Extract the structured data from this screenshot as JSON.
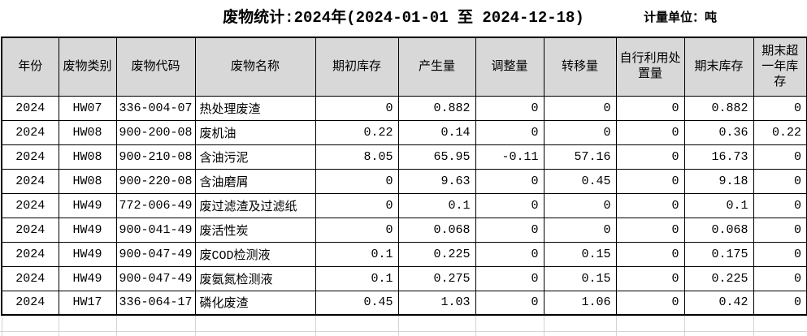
{
  "header": {
    "title": "废物统计:2024年(2024-01-01 至 2024-12-18)",
    "unit_label": "计量单位：吨"
  },
  "table": {
    "headers": [
      "年份",
      "废物类别",
      "废物代码",
      "废物名称",
      "期初库存",
      "产生量",
      "调整量",
      "转移量",
      "自行利用处置量",
      "期末库存",
      "期末超一年库存"
    ],
    "rows": [
      [
        "2024",
        "HW07",
        "336-004-07",
        "热处理废渣",
        "0",
        "0.882",
        "0",
        "0",
        "0",
        "0.882",
        "0"
      ],
      [
        "2024",
        "HW08",
        "900-200-08",
        "废机油",
        "0.22",
        "0.14",
        "0",
        "0",
        "0",
        "0.36",
        "0.22"
      ],
      [
        "2024",
        "HW08",
        "900-210-08",
        "含油污泥",
        "8.05",
        "65.95",
        "-0.11",
        "57.16",
        "0",
        "16.73",
        "0"
      ],
      [
        "2024",
        "HW08",
        "900-220-08",
        "含油磨屑",
        "0",
        "9.63",
        "0",
        "0.45",
        "0",
        "9.18",
        "0"
      ],
      [
        "2024",
        "HW49",
        "772-006-49",
        "废过滤渣及过滤纸",
        "0",
        "0.1",
        "0",
        "0",
        "0",
        "0.1",
        "0"
      ],
      [
        "2024",
        "HW49",
        "900-041-49",
        "废活性炭",
        "0",
        "0.068",
        "0",
        "0",
        "0",
        "0.068",
        "0"
      ],
      [
        "2024",
        "HW49",
        "900-047-49",
        "废COD检测液",
        "0.1",
        "0.225",
        "0",
        "0.15",
        "0",
        "0.175",
        "0"
      ],
      [
        "2024",
        "HW49",
        "900-047-49",
        "废氨氮检测液",
        "0.1",
        "0.275",
        "0",
        "0.15",
        "0",
        "0.225",
        "0"
      ],
      [
        "2024",
        "HW17",
        "336-064-17",
        "磷化废渣",
        "0.45",
        "1.03",
        "0",
        "1.06",
        "0",
        "0.42",
        "0"
      ]
    ]
  },
  "colors": {
    "header_bg": "#d8d8d8",
    "table_border": "#000000",
    "grid_line": "#d4d4d4"
  }
}
